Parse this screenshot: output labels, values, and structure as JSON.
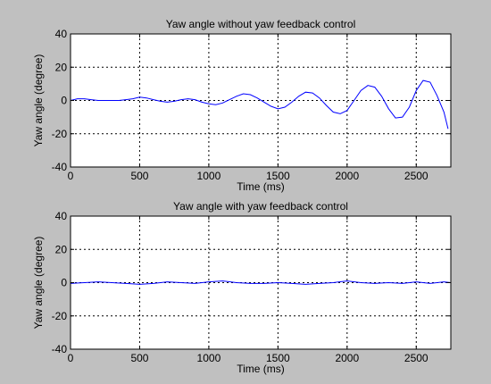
{
  "chart_data": [
    {
      "type": "line",
      "title": "Yaw angle without yaw feedback control",
      "xlabel": "Time (ms)",
      "ylabel": "Yaw angle (degree)",
      "xlim": [
        0,
        2750
      ],
      "ylim": [
        -40,
        40
      ],
      "xticks": [
        "0",
        "500",
        "1000",
        "1500",
        "2000",
        "2500"
      ],
      "yticks": [
        "40",
        "20",
        "0",
        "-20",
        "-40"
      ],
      "grid": true,
      "series_color": "#0000ff",
      "series": [
        {
          "x": [
            0,
            50,
            100,
            150,
            200,
            250,
            300,
            350,
            400,
            450,
            500,
            550,
            600,
            650,
            700,
            750,
            800,
            850,
            900,
            950,
            1000,
            1050,
            1100,
            1150,
            1200,
            1250,
            1300,
            1350,
            1400,
            1450,
            1500,
            1550,
            1600,
            1650,
            1700,
            1750,
            1800,
            1850,
            1900,
            1950,
            2000,
            2050,
            2100,
            2150,
            2200,
            2250,
            2300,
            2350,
            2400,
            2450,
            2500,
            2550,
            2600,
            2650,
            2700,
            2730
          ],
          "y": [
            0,
            1,
            1,
            0.5,
            0,
            0,
            0,
            0,
            0.5,
            1,
            2,
            1.5,
            0.5,
            -0.5,
            -1,
            -0.5,
            0.5,
            1,
            0.5,
            -1,
            -2,
            -2.5,
            -1.5,
            0.5,
            2.5,
            4,
            3.5,
            1.5,
            -1,
            -3.5,
            -5,
            -4,
            -1,
            2.5,
            5,
            4.5,
            1.5,
            -3,
            -7,
            -8,
            -6,
            0,
            6,
            9,
            8,
            2.5,
            -5,
            -10.5,
            -10,
            -4,
            6,
            12,
            11,
            3,
            -7,
            -17
          ]
        }
      ]
    },
    {
      "type": "line",
      "title": "Yaw angle with yaw feedback control",
      "xlabel": "Time (ms)",
      "ylabel": "Yaw angle (degree)",
      "xlim": [
        0,
        2750
      ],
      "ylim": [
        -40,
        40
      ],
      "xticks": [
        "0",
        "500",
        "1000",
        "1500",
        "2000",
        "2500"
      ],
      "yticks": [
        "40",
        "20",
        "0",
        "-20",
        "-40"
      ],
      "grid": true,
      "series_color": "#0000ff",
      "series": [
        {
          "x": [
            0,
            100,
            200,
            300,
            400,
            500,
            600,
            700,
            800,
            900,
            1000,
            1100,
            1200,
            1300,
            1400,
            1500,
            1600,
            1700,
            1800,
            1900,
            2000,
            2100,
            2200,
            2300,
            2400,
            2500,
            2600,
            2700,
            2750
          ],
          "y": [
            -0.5,
            0,
            0.5,
            0,
            -0.5,
            -1,
            -0.5,
            0.5,
            0,
            -0.5,
            0.5,
            1,
            0,
            -0.5,
            -0.5,
            0,
            -0.5,
            -1,
            -0.5,
            0,
            1,
            0,
            -0.5,
            0,
            -0.5,
            0.5,
            -0.5,
            0.5,
            0
          ]
        }
      ]
    }
  ]
}
